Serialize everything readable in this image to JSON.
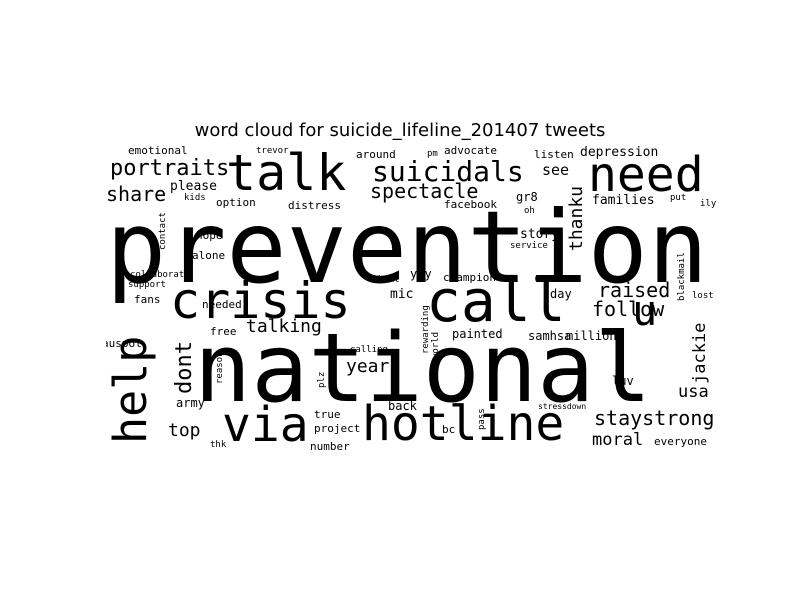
{
  "title": "word cloud for suicide_lifeline_201407 tweets",
  "cloud": {
    "text_color": "#000000",
    "background": "#ffffff",
    "words": [
      {
        "text": "prevention",
        "weight": 100
      },
      {
        "text": "national",
        "weight": 95
      },
      {
        "text": "call",
        "weight": 58
      },
      {
        "text": "crisis",
        "weight": 50
      },
      {
        "text": "talk",
        "weight": 50
      },
      {
        "text": "hotline",
        "weight": 48
      },
      {
        "text": "need",
        "weight": 48
      },
      {
        "text": "via",
        "weight": 48
      },
      {
        "text": "help",
        "weight": 45
      },
      {
        "text": "u",
        "weight": 42
      },
      {
        "text": "suicidals",
        "weight": 28
      },
      {
        "text": "portraits",
        "weight": 22
      },
      {
        "text": "dont",
        "weight": 22
      },
      {
        "text": "spectacle",
        "weight": 20
      },
      {
        "text": "share",
        "weight": 20
      },
      {
        "text": "raised",
        "weight": 20
      },
      {
        "text": "follow",
        "weight": 20
      },
      {
        "text": "staystrong",
        "weight": 20
      },
      {
        "text": "talking",
        "weight": 18
      },
      {
        "text": "year",
        "weight": 18
      },
      {
        "text": "top",
        "weight": 18
      },
      {
        "text": "thanku",
        "weight": 18
      },
      {
        "text": "jackie",
        "weight": 17
      },
      {
        "text": "moral",
        "weight": 17
      },
      {
        "text": "usa",
        "weight": 17
      },
      {
        "text": "see",
        "weight": 15
      },
      {
        "text": "depression",
        "weight": 13
      },
      {
        "text": "story",
        "weight": 13
      },
      {
        "text": "families",
        "weight": 13
      },
      {
        "text": "please",
        "weight": 13
      },
      {
        "text": "mic",
        "weight": 13
      },
      {
        "text": "yay",
        "weight": 12
      },
      {
        "text": "luv",
        "weight": 12
      },
      {
        "text": "samhsa",
        "weight": 12
      },
      {
        "text": "million",
        "weight": 12
      },
      {
        "text": "day",
        "weight": 12
      },
      {
        "text": "gr8",
        "weight": 12
      },
      {
        "text": "army",
        "weight": 12
      },
      {
        "text": "back",
        "weight": 12
      },
      {
        "text": "painted",
        "weight": 12
      },
      {
        "text": "option",
        "weight": 11
      },
      {
        "text": "distress",
        "weight": 11
      },
      {
        "text": "advocate",
        "weight": 11
      },
      {
        "text": "listen",
        "weight": 11
      },
      {
        "text": "facebook",
        "weight": 11
      },
      {
        "text": "emotional",
        "weight": 11
      },
      {
        "text": "around",
        "weight": 11
      },
      {
        "text": "hope",
        "weight": 11
      },
      {
        "text": "alone",
        "weight": 11
      },
      {
        "text": "needed",
        "weight": 11
      },
      {
        "text": "free",
        "weight": 11
      },
      {
        "text": "fans",
        "weight": 11
      },
      {
        "text": "auspol",
        "weight": 11
      },
      {
        "text": "champion",
        "weight": 11
      },
      {
        "text": "true",
        "weight": 11
      },
      {
        "text": "project",
        "weight": 11
      },
      {
        "text": "number",
        "weight": 11
      },
      {
        "text": "bc",
        "weight": 11
      },
      {
        "text": "everyone",
        "weight": 11
      },
      {
        "text": "trevor",
        "weight": 9
      },
      {
        "text": "pm",
        "weight": 9
      },
      {
        "text": "kids",
        "weight": 9
      },
      {
        "text": "contact",
        "weight": 9
      },
      {
        "text": "collaborate",
        "weight": 9
      },
      {
        "text": "support",
        "weight": 9
      },
      {
        "text": "heat",
        "weight": 9
      },
      {
        "text": "calling",
        "weight": 9
      },
      {
        "text": "rewarding",
        "weight": 9
      },
      {
        "text": "world",
        "weight": 9
      },
      {
        "text": "reason",
        "weight": 9
      },
      {
        "text": "plz",
        "weight": 9
      },
      {
        "text": "pass",
        "weight": 9
      },
      {
        "text": "thk",
        "weight": 9
      },
      {
        "text": "oh",
        "weight": 9
      },
      {
        "text": "service",
        "weight": 9
      },
      {
        "text": "blackmail",
        "weight": 9
      },
      {
        "text": "lost",
        "weight": 9
      },
      {
        "text": "put",
        "weight": 9
      },
      {
        "text": "ily",
        "weight": 9
      },
      {
        "text": "stressdown",
        "weight": 8
      }
    ]
  }
}
